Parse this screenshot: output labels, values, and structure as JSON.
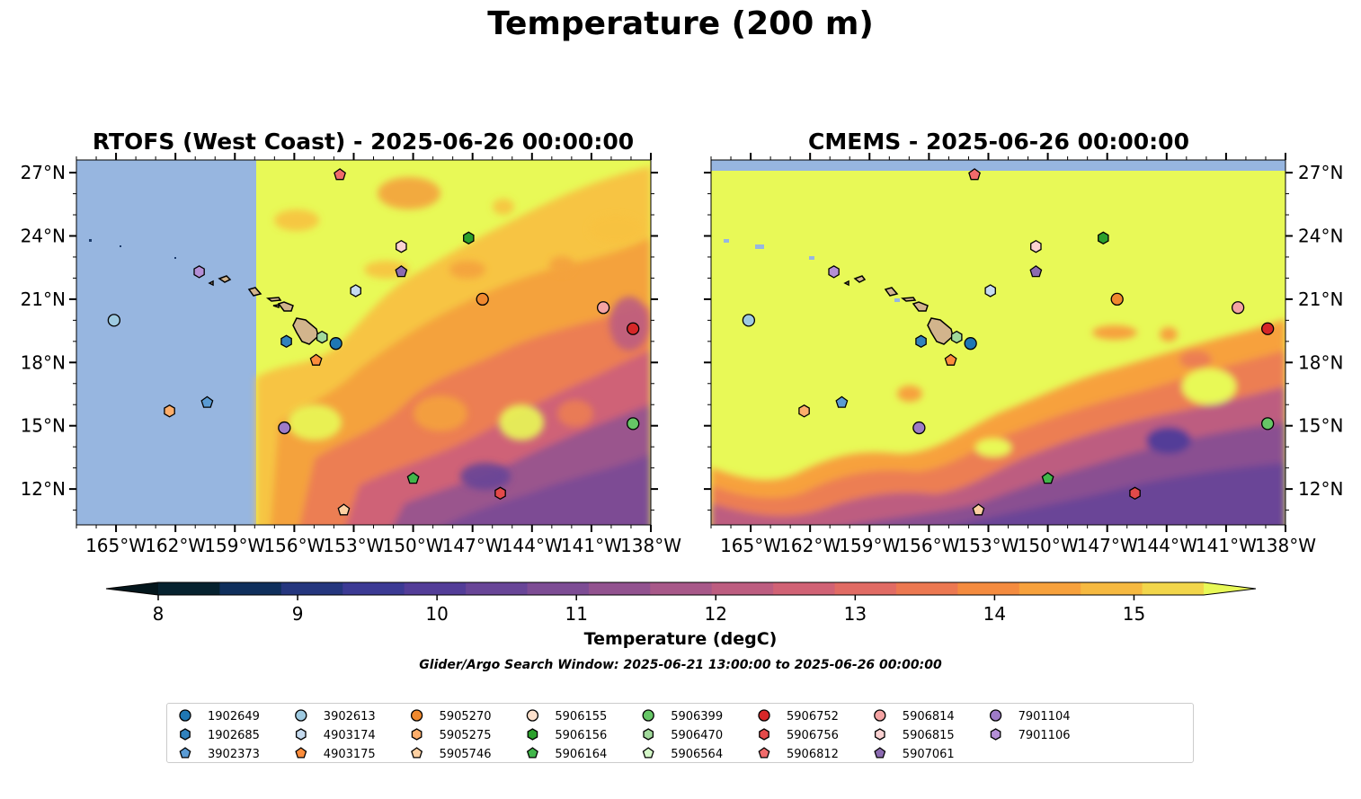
{
  "title": "Temperature (200 m)",
  "subtitle": "Glider/Argo Search Window: 2025-06-21 13:00:00 to 2025-06-26 00:00:00",
  "colorbar": {
    "label": "Temperature (degC)",
    "min": 8,
    "max": 15.5,
    "step": 0.5,
    "ticks": [
      "8",
      "9",
      "10",
      "11",
      "12",
      "13",
      "14",
      "15"
    ],
    "extend": "both",
    "colors": [
      "#06222f",
      "#0f2f5c",
      "#25367e",
      "#3c3a94",
      "#533d98",
      "#684597",
      "#7d4c94",
      "#92528f",
      "#a85889",
      "#bd5d80",
      "#d16275",
      "#e16b64",
      "#ec7851",
      "#f48b3f",
      "#f7a13c",
      "#f6b940",
      "#f2d64b"
    ],
    "over_color": "#e8f957",
    "under_color": "#04161c"
  },
  "panels": [
    {
      "title": "RTOFS (West Coast) - 2025-06-26 00:00:00",
      "no_data_west_of": "157.5°W",
      "no_data_color": "#97b6e0",
      "land_color": "#d2b48c"
    },
    {
      "title": "CMEMS - 2025-06-26 00:00:00",
      "no_data_north_of": "27.2°N",
      "no_data_color": "#97b6e0",
      "land_color": "#d2b48c"
    }
  ],
  "map_extent": {
    "lon_min": -167,
    "lon_max": -138,
    "lat_min": 10.3,
    "lat_max": 27.6
  },
  "lon_ticks": [
    {
      "value": -165,
      "label": "165°W"
    },
    {
      "value": -162,
      "label": "162°W"
    },
    {
      "value": -159,
      "label": "159°W"
    },
    {
      "value": -156,
      "label": "156°W"
    },
    {
      "value": -153,
      "label": "153°W"
    },
    {
      "value": -150,
      "label": "150°W"
    },
    {
      "value": -147,
      "label": "147°W"
    },
    {
      "value": -144,
      "label": "144°W"
    },
    {
      "value": -141,
      "label": "141°W"
    },
    {
      "value": -138,
      "label": "138°W"
    }
  ],
  "lat_ticks": [
    {
      "value": 12,
      "label": "12°N"
    },
    {
      "value": 15,
      "label": "15°N"
    },
    {
      "value": 18,
      "label": "18°N"
    },
    {
      "value": 21,
      "label": "21°N"
    },
    {
      "value": 24,
      "label": "24°N"
    },
    {
      "value": 27,
      "label": "27°N"
    }
  ],
  "floats": [
    {
      "id": "1902649",
      "marker": "circle",
      "color": "#1f77b4",
      "lon": -153.9,
      "lat": 18.9
    },
    {
      "id": "1902685",
      "marker": "hexagon",
      "color": "#3182bd",
      "lon": -156.4,
      "lat": 19.0
    },
    {
      "id": "3902373",
      "marker": "pentagon",
      "color": "#5a9bd4",
      "lon": -160.4,
      "lat": 16.1
    },
    {
      "id": "3902613",
      "marker": "circle",
      "color": "#9ecae1",
      "lon": -165.1,
      "lat": 20.0
    },
    {
      "id": "4903174",
      "marker": "hexagon",
      "color": "#c6dbef",
      "lon": -152.9,
      "lat": 21.4
    },
    {
      "id": "4903175",
      "marker": "pentagon",
      "color": "#fd8d3c",
      "lon": -154.9,
      "lat": 18.1
    },
    {
      "id": "5905270",
      "marker": "circle",
      "color": "#f0892e",
      "lon": -146.5,
      "lat": 21.0
    },
    {
      "id": "5905275",
      "marker": "hexagon",
      "color": "#fdae6b",
      "lon": -162.3,
      "lat": 15.7
    },
    {
      "id": "5905746",
      "marker": "pentagon",
      "color": "#fdd0a2",
      "lon": -153.5,
      "lat": 11.0
    },
    {
      "id": "5906155",
      "marker": "circle",
      "color": "#fde0cc",
      "lon": 0,
      "lat": 0,
      "hidden": true
    },
    {
      "id": "5906156",
      "marker": "hexagon",
      "color": "#2ca02c",
      "lon": -147.2,
      "lat": 23.9
    },
    {
      "id": "5906164",
      "marker": "pentagon",
      "color": "#41b64a",
      "lon": -150.0,
      "lat": 12.5
    },
    {
      "id": "5906399",
      "marker": "circle",
      "color": "#66c666",
      "lon": -138.9,
      "lat": 15.1
    },
    {
      "id": "5906470",
      "marker": "hexagon",
      "color": "#a1d99b",
      "lon": -154.6,
      "lat": 19.2
    },
    {
      "id": "5906564",
      "marker": "pentagon",
      "color": "#d4f7c8",
      "lon": 0,
      "lat": 0,
      "hidden": true
    },
    {
      "id": "5906752",
      "marker": "circle",
      "color": "#d62728",
      "lon": -138.9,
      "lat": 19.6
    },
    {
      "id": "5906756",
      "marker": "hexagon",
      "color": "#e34a4a",
      "lon": -145.6,
      "lat": 11.8
    },
    {
      "id": "5906812",
      "marker": "pentagon",
      "color": "#f06b6b",
      "lon": -153.7,
      "lat": 26.9
    },
    {
      "id": "5906814",
      "marker": "circle",
      "color": "#f4a3a3",
      "lon": -140.4,
      "lat": 20.6
    },
    {
      "id": "5906815",
      "marker": "hexagon",
      "color": "#fbd2d2",
      "lon": -150.6,
      "lat": 23.5
    },
    {
      "id": "5907061",
      "marker": "pentagon",
      "color": "#8c6bb1",
      "lon": -150.6,
      "lat": 22.3
    },
    {
      "id": "7901104",
      "marker": "circle",
      "color": "#9e7bc7",
      "lon": -156.5,
      "lat": 14.9
    },
    {
      "id": "7901106",
      "marker": "hexagon",
      "color": "#b48fd6",
      "lon": -160.8,
      "lat": 22.3
    }
  ]
}
